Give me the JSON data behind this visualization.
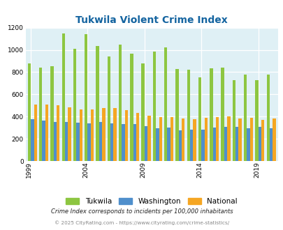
{
  "title": "Tukwila Violent Crime Index",
  "years": [
    1999,
    2000,
    2001,
    2002,
    2003,
    2004,
    2005,
    2006,
    2007,
    2008,
    2009,
    2010,
    2011,
    2012,
    2013,
    2014,
    2015,
    2016,
    2017,
    2018,
    2019,
    2020
  ],
  "tukwila": [
    875,
    840,
    855,
    1150,
    1010,
    1140,
    1035,
    940,
    1045,
    965,
    880,
    985,
    1025,
    830,
    820,
    750,
    835,
    840,
    730,
    780,
    730,
    775
  ],
  "washington": [
    375,
    365,
    350,
    350,
    345,
    340,
    350,
    340,
    335,
    335,
    315,
    295,
    300,
    275,
    280,
    280,
    300,
    305,
    310,
    295,
    310,
    295
  ],
  "national": [
    510,
    505,
    500,
    480,
    465,
    465,
    475,
    475,
    455,
    435,
    405,
    395,
    395,
    385,
    375,
    390,
    395,
    400,
    385,
    390,
    370,
    385
  ],
  "tukwila_color": "#8dc641",
  "washington_color": "#4f8fcc",
  "national_color": "#f5a623",
  "bg_color": "#dff0f5",
  "ylim": [
    0,
    1200
  ],
  "yticks": [
    0,
    200,
    400,
    600,
    800,
    1000,
    1200
  ],
  "xtick_years": [
    1999,
    2004,
    2009,
    2014,
    2019
  ],
  "footnote1": "Crime Index corresponds to incidents per 100,000 inhabitants",
  "footnote2": "© 2025 CityRating.com - https://www.cityrating.com/crime-statistics/",
  "title_color": "#1464a0",
  "footnote1_color": "#222222",
  "footnote2_color": "#888888"
}
